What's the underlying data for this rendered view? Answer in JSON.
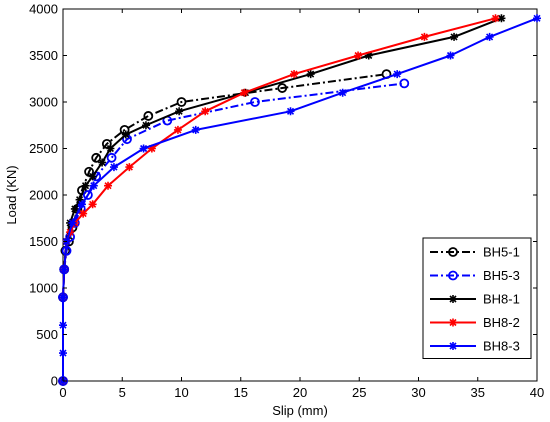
{
  "chart_data": {
    "type": "line",
    "xlabel": "Slip (mm)",
    "ylabel": "Load (KN)",
    "xlim": [
      0,
      40
    ],
    "ylim": [
      0,
      4000
    ],
    "xticks": [
      0,
      5,
      10,
      15,
      20,
      25,
      30,
      35,
      40
    ],
    "yticks": [
      0,
      500,
      1000,
      1500,
      2000,
      2500,
      3000,
      3500,
      4000
    ],
    "grid": false,
    "legend_position": "bottom-right",
    "series": [
      {
        "name": "BH5-1",
        "color": "#000000",
        "line_style": "dash-dot",
        "marker": "circle",
        "x": [
          0,
          0,
          0.1,
          0.2,
          0.5,
          0.8,
          1.2,
          1.6,
          2.2,
          2.8,
          3.7,
          5.2,
          7.2,
          10,
          18.5,
          27.3
        ],
        "y": [
          0,
          900,
          1200,
          1400,
          1500,
          1650,
          1850,
          2050,
          2250,
          2400,
          2550,
          2700,
          2850,
          3000,
          3150,
          3300
        ]
      },
      {
        "name": "BH5-3",
        "color": "#0000ff",
        "line_style": "dash-dot",
        "marker": "circle",
        "x": [
          0,
          0,
          0.1,
          0.3,
          0.6,
          1.0,
          1.5,
          2.1,
          2.8,
          4.1,
          5.4,
          8.8,
          16.2,
          28.8
        ],
        "y": [
          0,
          900,
          1200,
          1400,
          1550,
          1700,
          1850,
          2000,
          2200,
          2400,
          2600,
          2800,
          3000,
          3200
        ]
      },
      {
        "name": "BH8-1",
        "color": "#000000",
        "line_style": "solid",
        "marker": "star",
        "x": [
          0,
          0,
          0.1,
          0.3,
          0.6,
          1.0,
          1.4,
          1.9,
          2.5,
          3.3,
          4.0,
          5.3,
          7.0,
          9.8,
          15.4,
          20.9,
          25.8,
          33.0,
          37.0
        ],
        "y": [
          0,
          900,
          1200,
          1500,
          1700,
          1850,
          1950,
          2100,
          2200,
          2350,
          2500,
          2650,
          2750,
          2900,
          3100,
          3300,
          3500,
          3700,
          3900
        ]
      },
      {
        "name": "BH8-2",
        "color": "#ff0000",
        "line_style": "solid",
        "marker": "star",
        "x": [
          0,
          0,
          0.1,
          0.3,
          0.6,
          1.0,
          1.7,
          2.5,
          3.8,
          5.6,
          7.5,
          9.7,
          12.0,
          15.3,
          19.5,
          24.9,
          30.5,
          36.5
        ],
        "y": [
          0,
          900,
          1200,
          1500,
          1600,
          1700,
          1800,
          1900,
          2100,
          2300,
          2500,
          2700,
          2900,
          3100,
          3300,
          3500,
          3700,
          3900
        ]
      },
      {
        "name": "BH8-3",
        "color": "#0000ff",
        "line_style": "solid",
        "marker": "star",
        "x": [
          0,
          0,
          0,
          0,
          0.1,
          0.3,
          0.8,
          1.6,
          2.6,
          4.3,
          6.8,
          11.2,
          19.2,
          23.6,
          28.2,
          32.7,
          36.0,
          40.0
        ],
        "y": [
          0,
          300,
          600,
          900,
          1200,
          1500,
          1700,
          1900,
          2100,
          2300,
          2500,
          2700,
          2900,
          3100,
          3300,
          3500,
          3700,
          3900
        ]
      }
    ]
  }
}
